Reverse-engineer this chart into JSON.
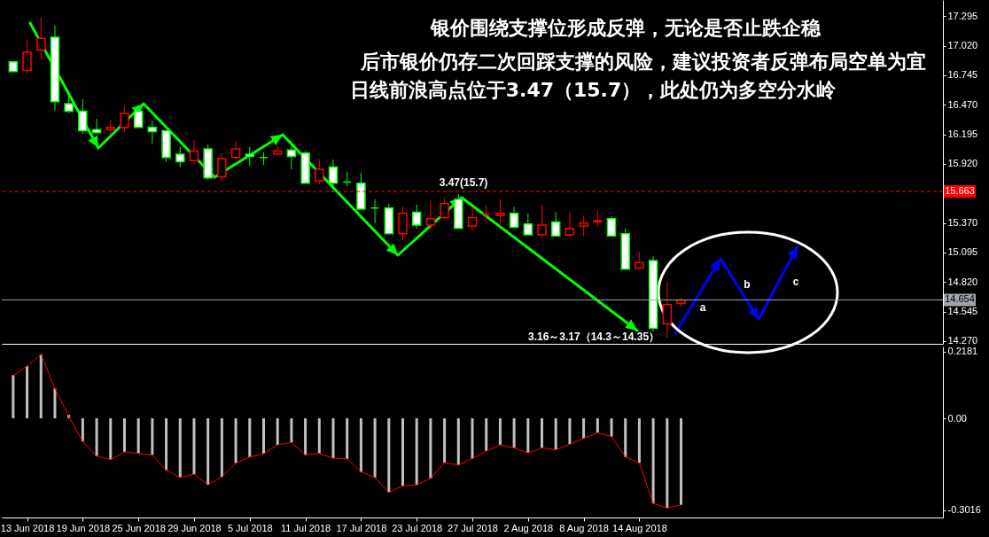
{
  "chart_data": [
    {
      "type": "candlestick",
      "title": "银价围绕支撑位形成反弹，无论是否止跌企稳",
      "subtitle": "后市银价仍存二次回踩支撑的风险，建议投资者反弹布局空单为宜",
      "annotations": [
        "日线前浪高点位于3.47（15.7），此处仍为多空分水岭",
        "3.47(15.7)",
        "3.16～3.17（14.3～14.35）",
        "a",
        "b",
        "c"
      ],
      "ohlc": [
        [
          16.87,
          16.87,
          16.78,
          16.78
        ],
        [
          16.79,
          17.08,
          16.76,
          16.96
        ],
        [
          16.98,
          17.28,
          16.9,
          17.09
        ],
        [
          17.1,
          17.21,
          16.42,
          16.5
        ],
        [
          16.48,
          16.59,
          16.39,
          16.41
        ],
        [
          16.41,
          16.52,
          16.2,
          16.23
        ],
        [
          16.24,
          16.34,
          16.21,
          16.21
        ],
        [
          16.24,
          16.33,
          16.2,
          16.26
        ],
        [
          16.26,
          16.46,
          16.22,
          16.39
        ],
        [
          16.41,
          16.45,
          16.26,
          16.26
        ],
        [
          16.26,
          16.32,
          16.11,
          16.22
        ],
        [
          16.23,
          16.23,
          15.94,
          15.98
        ],
        [
          16.01,
          16.08,
          15.89,
          15.94
        ],
        [
          15.95,
          16.14,
          15.92,
          16.04
        ],
        [
          16.06,
          16.1,
          15.77,
          15.79
        ],
        [
          15.8,
          16.02,
          15.76,
          15.97
        ],
        [
          15.98,
          16.13,
          15.96,
          16.06
        ],
        [
          16.01,
          16.08,
          15.9,
          15.99
        ],
        [
          15.98,
          16.03,
          15.91,
          15.98
        ],
        [
          16.01,
          16.09,
          16,
          16.04
        ],
        [
          16.05,
          16.1,
          15.87,
          15.99
        ],
        [
          16.02,
          16.04,
          15.74,
          15.74
        ],
        [
          15.76,
          15.97,
          15.73,
          15.87
        ],
        [
          15.89,
          15.96,
          15.66,
          15.74
        ],
        [
          15.75,
          15.85,
          15.71,
          15.75
        ],
        [
          15.74,
          15.84,
          15.5,
          15.5
        ],
        [
          15.51,
          15.59,
          15.37,
          15.51
        ],
        [
          15.51,
          15.55,
          15.27,
          15.27
        ],
        [
          15.27,
          15.52,
          15.21,
          15.46
        ],
        [
          15.47,
          15.54,
          15.32,
          15.35
        ],
        [
          15.35,
          15.58,
          15.3,
          15.41
        ],
        [
          15.42,
          15.6,
          15.4,
          15.55
        ],
        [
          15.59,
          15.64,
          15.32,
          15.32
        ],
        [
          15.34,
          15.52,
          15.3,
          15.42
        ],
        [
          15.45,
          15.53,
          15.37,
          15.45
        ],
        [
          15.44,
          15.59,
          15.34,
          15.46
        ],
        [
          15.46,
          15.52,
          15.33,
          15.33
        ],
        [
          15.36,
          15.46,
          15.26,
          15.26
        ],
        [
          15.26,
          15.54,
          15.23,
          15.35
        ],
        [
          15.38,
          15.47,
          15.25,
          15.25
        ],
        [
          15.26,
          15.47,
          15.24,
          15.32
        ],
        [
          15.34,
          15.44,
          15.25,
          15.37
        ],
        [
          15.38,
          15.49,
          15.34,
          15.39
        ],
        [
          15.41,
          15.43,
          15.25,
          15.25
        ],
        [
          15.27,
          15.32,
          14.94,
          14.94
        ],
        [
          14.95,
          15.1,
          14.95,
          15
        ],
        [
          15.02,
          15.06,
          14.36,
          14.39
        ],
        [
          14.43,
          14.83,
          14.3,
          14.61
        ],
        [
          14.62,
          14.67,
          14.59,
          14.654
        ],
        null,
        null,
        null,
        null,
        null,
        null,
        null,
        null,
        null,
        null,
        null,
        null,
        null,
        null,
        null,
        null,
        null,
        null
      ],
      "colors": [
        "#00ff00",
        "#ff0000",
        "#ff0000",
        "#00ff00",
        "#00ff00",
        "#00ff00",
        "#00ff00",
        "#ff0000",
        "#ff0000",
        "#00ff00",
        "#00ff00",
        "#00ff00",
        "#00ff00",
        "#ff0000",
        "#00ff00",
        "#ff0000",
        "#ff0000",
        "#00ff00",
        "#00ff00",
        "#ff0000",
        "#00ff00",
        "#00ff00",
        "#ff0000",
        "#00ff00",
        "#00ff00",
        "#00ff00",
        "#00ff00",
        "#00ff00",
        "#ff0000",
        "#00ff00",
        "#ff0000",
        "#ff0000",
        "#00ff00",
        "#ff0000",
        "#ff0000",
        "#ff0000",
        "#00ff00",
        "#00ff00",
        "#ff0000",
        "#00ff00",
        "#ff0000",
        "#ff0000",
        "#ff0000",
        "#00ff00",
        "#00ff00",
        "#ff0000",
        "#00ff00",
        "#ff0000",
        "#ff0000",
        null,
        null,
        null,
        null,
        null,
        null,
        null,
        null,
        null,
        null,
        null,
        null,
        null,
        null,
        null,
        null,
        null,
        null
      ],
      "ref_lines": [
        {
          "axis": "y",
          "value": 15.663,
          "label": "15.663",
          "color": "#ff0000",
          "line_style": "dashed"
        },
        {
          "axis": "y",
          "value": 14.654,
          "label": "14.654",
          "color": "#a0a4ac"
        }
      ],
      "ylim": [
        14.245,
        17.446
      ],
      "yticks": [
        17.295,
        {
          "value": 17.02,
          "label": "17.020"
        },
        16.745,
        {
          "value": 16.47,
          "label": "16.470"
        },
        16.195,
        {
          "value": 15.92,
          "label": "15.920"
        },
        {
          "value": 15.37,
          "label": "15.370"
        },
        15.095,
        {
          "value": 14.82,
          "label": "14.820"
        },
        14.545,
        {
          "value": 14.27,
          "label": "14.270"
        }
      ],
      "tick_labels": "y"
    },
    {
      "type": "bar",
      "categories": [
        null,
        "13 Jun 2018",
        null,
        null,
        null,
        "19 Jun 2018",
        null,
        null,
        null,
        "25 Jun 2018",
        null,
        null,
        null,
        "29 Jun 2018",
        null,
        null,
        null,
        "5 Jul 2018",
        null,
        null,
        null,
        "11 Jul 2018",
        null,
        null,
        null,
        "17 Jul 2018",
        null,
        null,
        null,
        "23 Jul 2018",
        null,
        null,
        null,
        "27 Jul 2018",
        null,
        null,
        null,
        "2 Aug 2018",
        null,
        null,
        null,
        "8 Aug 2018",
        null,
        null,
        null,
        "14 Aug 2018",
        null,
        null,
        null,
        null,
        null,
        null,
        null,
        null,
        null,
        null,
        null,
        null,
        null,
        null,
        null,
        null,
        null,
        null,
        null,
        null,
        null
      ],
      "series": [
        {
          "type": "bar",
          "color": "#c0c0c0",
          "values": [
            0.142,
            0.171,
            0.21,
            0.098,
            0.012,
            -0.076,
            -0.124,
            -0.135,
            -0.11,
            -0.115,
            -0.12,
            -0.17,
            -0.194,
            -0.183,
            -0.218,
            -0.192,
            -0.147,
            -0.127,
            -0.116,
            -0.087,
            -0.079,
            -0.12,
            -0.115,
            -0.131,
            -0.133,
            -0.176,
            -0.194,
            -0.243,
            -0.221,
            -0.218,
            -0.197,
            -0.145,
            -0.153,
            -0.132,
            -0.107,
            -0.087,
            -0.097,
            -0.113,
            -0.097,
            -0.103,
            -0.085,
            -0.066,
            -0.047,
            -0.06,
            -0.127,
            -0.146,
            -0.279,
            -0.294,
            -0.284,
            null,
            null,
            null,
            null,
            null,
            null,
            null,
            null,
            null,
            null,
            null,
            null,
            null,
            null,
            null,
            null,
            null,
            null
          ]
        },
        {
          "type": "line",
          "color": "#ff0000",
          "values": [
            0.14,
            0.171,
            0.21,
            0.098,
            0.006,
            -0.076,
            -0.124,
            -0.135,
            -0.11,
            -0.115,
            -0.12,
            -0.17,
            -0.194,
            -0.183,
            -0.218,
            -0.192,
            -0.147,
            -0.127,
            -0.116,
            -0.087,
            -0.079,
            -0.12,
            -0.115,
            -0.131,
            -0.133,
            -0.176,
            -0.194,
            -0.243,
            -0.221,
            -0.218,
            -0.197,
            -0.145,
            -0.153,
            -0.132,
            -0.107,
            -0.087,
            -0.097,
            -0.113,
            -0.097,
            -0.103,
            -0.085,
            -0.066,
            -0.047,
            -0.06,
            -0.127,
            -0.146,
            -0.279,
            -0.294,
            -0.284,
            null,
            null,
            null,
            null,
            null,
            null,
            null,
            null,
            null,
            null,
            null,
            null,
            null,
            null,
            null,
            null,
            null,
            null
          ]
        }
      ],
      "ylim": [
        -0.325,
        0.2355
      ],
      "yticks": [
        0.2181,
        {
          "value": 0,
          "label": "0.00"
        },
        -0.3016
      ]
    }
  ]
}
